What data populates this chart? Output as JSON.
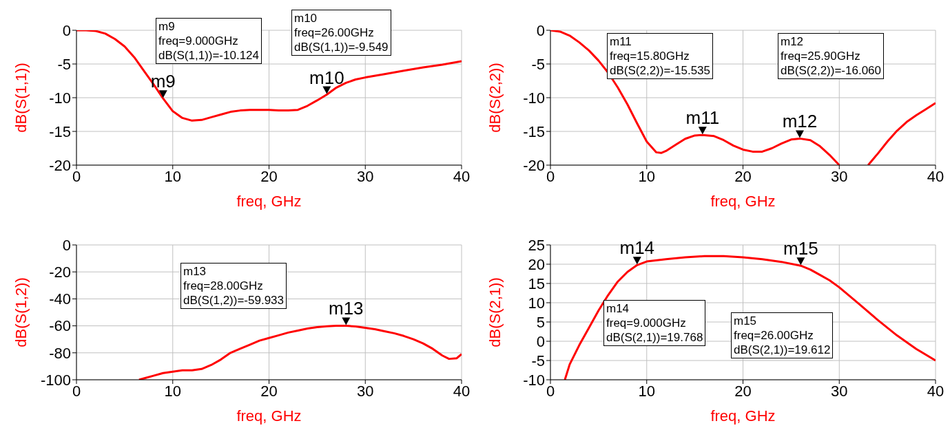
{
  "chart_data": [
    {
      "type": "line",
      "xlabel": "freq, GHz",
      "ylabel": "dB(S(1,1))",
      "xlim": [
        0,
        40
      ],
      "xticks": [
        0,
        10,
        20,
        30,
        40
      ],
      "ylim": [
        -20,
        0
      ],
      "yticks": [
        -20,
        -15,
        -10,
        -5,
        0
      ],
      "grid": true,
      "x": [
        0,
        1,
        2,
        3,
        4,
        5,
        6,
        7,
        8,
        9,
        10,
        11,
        12,
        13,
        14,
        15,
        16,
        17,
        18,
        19,
        20,
        21,
        22,
        23,
        24,
        25,
        26,
        27,
        28,
        29,
        30,
        32,
        34,
        36,
        38,
        40
      ],
      "series": [
        {
          "color": "#ff0000",
          "values": [
            0,
            0,
            -0.1,
            -0.5,
            -1.3,
            -2.4,
            -4,
            -6,
            -8,
            -10.124,
            -12,
            -13,
            -13.4,
            -13.3,
            -12.9,
            -12.5,
            -12.1,
            -11.9,
            -11.8,
            -11.8,
            -11.8,
            -11.9,
            -11.9,
            -11.8,
            -11.2,
            -10.4,
            -9.549,
            -8.5,
            -7.8,
            -7.3,
            -7,
            -6.5,
            -6,
            -5.5,
            -5.1,
            -4.6
          ]
        }
      ],
      "annotations": [
        {
          "text": "m9",
          "x": 9,
          "y": -10.124
        },
        {
          "text": "m10",
          "x": 26,
          "y": -9.549
        },
        "m9\nfreq=9.000GHz\ndB(S(1,1))=-10.124",
        "m10\nfreq=26.00GHz\ndB(S(1,1))=-9.549"
      ]
    },
    {
      "type": "line",
      "xlabel": "freq, GHz",
      "ylabel": "dB(S(2,2))",
      "xlim": [
        0,
        40
      ],
      "xticks": [
        0,
        10,
        20,
        30,
        40
      ],
      "ylim": [
        -20,
        0
      ],
      "yticks": [
        -20,
        -15,
        -10,
        -5,
        0
      ],
      "grid": true,
      "x": [
        0,
        1,
        2,
        3,
        4,
        5,
        6,
        7,
        8,
        9,
        10,
        11,
        11.5,
        12,
        13,
        14,
        15,
        15.8,
        17,
        18,
        19,
        20,
        21,
        22,
        23,
        24,
        25,
        25.9,
        27,
        28,
        29,
        30,
        31.5,
        33,
        34,
        35,
        36,
        37,
        38,
        39,
        40
      ],
      "series": [
        {
          "color": "#ff0000",
          "values": [
            0,
            -0.2,
            -0.8,
            -1.8,
            -3,
            -4.5,
            -6.3,
            -8.5,
            -11,
            -13.8,
            -16.5,
            -18.1,
            -18.2,
            -17.9,
            -17,
            -16.1,
            -15.6,
            -15.535,
            -15.7,
            -16.3,
            -17.1,
            -17.7,
            -18,
            -18,
            -17.5,
            -16.8,
            -16.2,
            -16.06,
            -16.3,
            -17.2,
            -18.5,
            -20,
            null,
            -20,
            -18.3,
            -16.5,
            -14.9,
            -13.6,
            -12.6,
            -11.7,
            -10.8
          ]
        }
      ],
      "annotations": [
        {
          "text": "m11",
          "x": 15.8,
          "y": -15.535
        },
        {
          "text": "m12",
          "x": 25.9,
          "y": -16.06
        },
        "m11\nfreq=15.80GHz\ndB(S(2,2))=-15.535",
        "m12\nfreq=25.90GHz\ndB(S(2,2))=-16.060"
      ]
    },
    {
      "type": "line",
      "xlabel": "freq, GHz",
      "ylabel": "dB(S(1,2))",
      "xlim": [
        0,
        40
      ],
      "xticks": [
        0,
        10,
        20,
        30,
        40
      ],
      "ylim": [
        -100,
        0
      ],
      "yticks": [
        -100,
        -80,
        -60,
        -40,
        -20,
        0
      ],
      "grid": true,
      "x": [
        6.5,
        7,
        8,
        9,
        10,
        11,
        12,
        13,
        14,
        15,
        16,
        17,
        18,
        19,
        20,
        21,
        22,
        23,
        24,
        25,
        26,
        27,
        28,
        29,
        30,
        31,
        32,
        33,
        34,
        35,
        36,
        37,
        38,
        38.7,
        39.5,
        40
      ],
      "series": [
        {
          "color": "#ff0000",
          "values": [
            -100,
            -99,
            -97,
            -95,
            -94,
            -93,
            -93,
            -92,
            -89,
            -85,
            -80,
            -77,
            -74,
            -71,
            -69,
            -67,
            -65,
            -63.5,
            -62,
            -61,
            -60.3,
            -60,
            -59.933,
            -60.5,
            -61.5,
            -62.5,
            -64,
            -65.5,
            -67.5,
            -70,
            -73,
            -77,
            -82,
            -84.5,
            -84,
            -81
          ]
        }
      ],
      "annotations": [
        {
          "text": "m13",
          "x": 28,
          "y": -59.933
        },
        "m13\nfreq=28.00GHz\ndB(S(1,2))=-59.933"
      ]
    },
    {
      "type": "line",
      "xlabel": "freq, GHz",
      "ylabel": "dB(S(2,1))",
      "xlim": [
        0,
        40
      ],
      "xticks": [
        0,
        10,
        20,
        30,
        40
      ],
      "ylim": [
        -10,
        25
      ],
      "yticks": [
        -10,
        -5,
        0,
        5,
        10,
        15,
        20,
        25
      ],
      "grid": true,
      "x": [
        1.5,
        2,
        3,
        4,
        5,
        6,
        7,
        8,
        9,
        10,
        12,
        14,
        16,
        18,
        20,
        22,
        24,
        26,
        27,
        28,
        29,
        30,
        32,
        34,
        36,
        38,
        40
      ],
      "series": [
        {
          "color": "#ff0000",
          "values": [
            -10,
            -6,
            -1,
            3.5,
            8,
            12,
            15.5,
            18,
            19.768,
            20.7,
            21.3,
            21.8,
            22.1,
            22.1,
            21.8,
            21.3,
            20.6,
            19.612,
            18.6,
            17.2,
            15.8,
            14,
            9.8,
            5.5,
            1.5,
            -2,
            -5
          ]
        }
      ],
      "annotations": [
        {
          "text": "m14",
          "x": 9,
          "y": 19.768
        },
        {
          "text": "m15",
          "x": 26,
          "y": 19.612
        },
        "m14\nfreq=9.000GHz\ndB(S(2,1))=19.768",
        "m15\nfreq=26.00GHz\ndB(S(2,1))=19.612"
      ]
    }
  ]
}
